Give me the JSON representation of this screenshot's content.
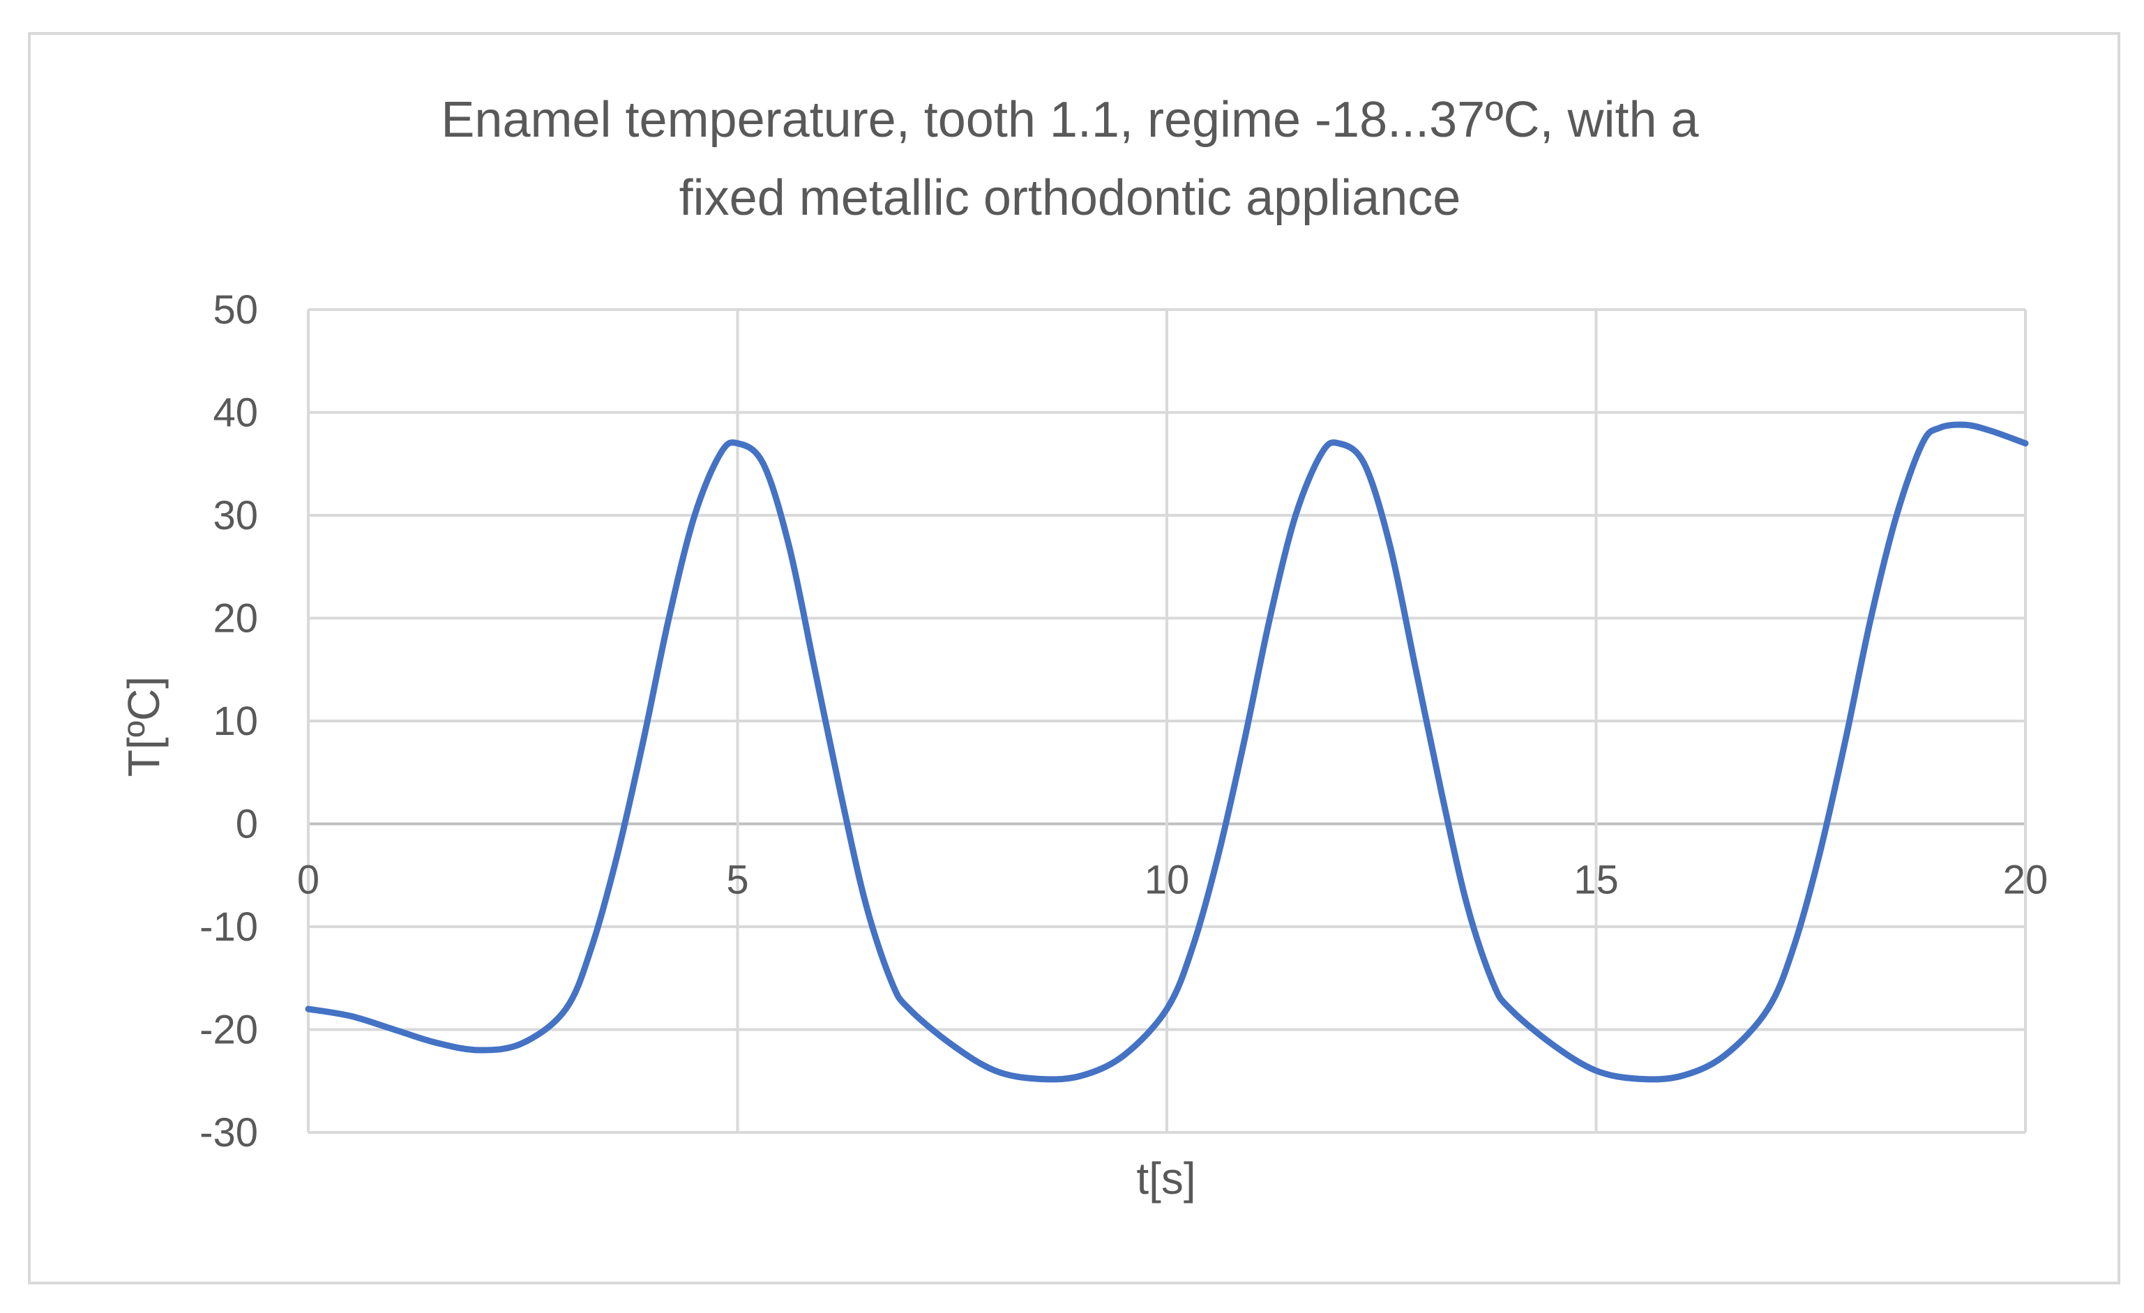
{
  "chart_data": {
    "type": "line",
    "title_line1": "Enamel temperature, tooth 1.1, regime -18...37ºC, with a",
    "title_line2": "fixed metallic orthodontic appliance",
    "xlabel": "t[s]",
    "ylabel": "T[ºC]",
    "xlim": [
      0,
      20
    ],
    "ylim": [
      -30,
      50
    ],
    "x_ticks": [
      "0",
      "5",
      "10",
      "15",
      "20"
    ],
    "y_ticks": [
      "50",
      "40",
      "30",
      "20",
      "10",
      "0",
      "-10",
      "-20",
      "-30"
    ],
    "grid": true,
    "legend": "none",
    "series": [
      {
        "color": "#4472c4",
        "points": [
          [
            0,
            -18
          ],
          [
            0.5,
            -18.7
          ],
          [
            1,
            -20
          ],
          [
            1.5,
            -21.3
          ],
          [
            2,
            -22
          ],
          [
            2.5,
            -21.3
          ],
          [
            3,
            -18
          ],
          [
            3.3,
            -12
          ],
          [
            3.6,
            -3
          ],
          [
            3.9,
            8
          ],
          [
            4.2,
            20
          ],
          [
            4.5,
            30
          ],
          [
            4.8,
            36
          ],
          [
            5,
            37
          ],
          [
            5.3,
            35
          ],
          [
            5.6,
            27
          ],
          [
            5.9,
            15
          ],
          [
            6.2,
            3
          ],
          [
            6.5,
            -8
          ],
          [
            6.8,
            -15.5
          ],
          [
            7,
            -18
          ],
          [
            7.5,
            -21.5
          ],
          [
            8,
            -24
          ],
          [
            8.5,
            -24.8
          ],
          [
            9,
            -24.5
          ],
          [
            9.5,
            -22.5
          ],
          [
            10,
            -18
          ],
          [
            10.3,
            -12
          ],
          [
            10.6,
            -3
          ],
          [
            10.9,
            8
          ],
          [
            11.2,
            20
          ],
          [
            11.5,
            30
          ],
          [
            11.8,
            36
          ],
          [
            12,
            37
          ],
          [
            12.3,
            35
          ],
          [
            12.6,
            27
          ],
          [
            12.9,
            15
          ],
          [
            13.2,
            3
          ],
          [
            13.5,
            -8
          ],
          [
            13.8,
            -15.5
          ],
          [
            14,
            -18
          ],
          [
            14.5,
            -21.5
          ],
          [
            15,
            -24
          ],
          [
            15.5,
            -24.8
          ],
          [
            16,
            -24.5
          ],
          [
            16.5,
            -22.5
          ],
          [
            17,
            -18
          ],
          [
            17.3,
            -12
          ],
          [
            17.6,
            -3
          ],
          [
            17.9,
            8
          ],
          [
            18.2,
            20
          ],
          [
            18.5,
            30
          ],
          [
            18.8,
            37
          ],
          [
            19,
            38.5
          ],
          [
            19.3,
            38.8
          ],
          [
            19.6,
            38.2
          ],
          [
            20,
            37
          ]
        ]
      }
    ]
  }
}
